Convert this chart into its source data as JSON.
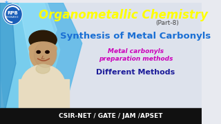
{
  "bg_color": "#e8eaf0",
  "title_text": "Organometallic Chemistry",
  "title_color": "#ffff00",
  "part_text": "(Part-8)",
  "part_color": "#444444",
  "subtitle_text": "Synthesis of Metal Carbonyls",
  "subtitle_color": "#1a6fd4",
  "line1_text": "Metal carbonyls",
  "line2_text": "preparation methods",
  "lines_color": "#cc00bb",
  "diff_text": "Different Methods",
  "diff_color": "#1a1a99",
  "bottom_text": "CSIR-NET / GATE / JAM /APSET",
  "bottom_bg": "#111111",
  "bottom_color": "#ffffff",
  "logo_bg": "#1a5eb8",
  "logo_star_color": "#44aaff",
  "splash_color1": "#5ab8e8",
  "splash_color2": "#3090c8",
  "person_skin": "#c8a070",
  "person_shirt": "#e8dcc0",
  "bg_right": "#dde0ea"
}
